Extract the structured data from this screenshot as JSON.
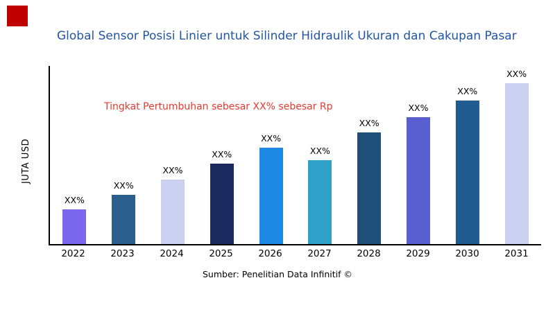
{
  "header": {
    "title": "Global Sensor Posisi Linier untuk Silinder Hidraulik Ukuran dan Cakupan Pasar",
    "title_color": "#2155A3",
    "logo_color": "#C00000"
  },
  "annotation": {
    "text": "Tingkat Pertumbuhan sebesar XX% sebesar Rp",
    "color": "#E8392E"
  },
  "source": "Sumber: Penelitian Data Infinitif ©",
  "chart_data": {
    "type": "bar",
    "title": "Global Sensor Posisi Linier untuk Silinder Hidraulik Ukuran dan Cakupan Pasar",
    "xlabel": "",
    "ylabel": "JUTA USD",
    "categories": [
      "2022",
      "2023",
      "2024",
      "2025",
      "2026",
      "2027",
      "2028",
      "2029",
      "2030",
      "2031"
    ],
    "values": [
      50,
      70,
      92,
      115,
      138,
      120,
      160,
      182,
      205,
      230
    ],
    "value_labels": [
      "XX%",
      "XX%",
      "XX%",
      "XX%",
      "XX%",
      "XX%",
      "XX%",
      "XX%",
      "XX%",
      "XX%"
    ],
    "bar_colors": [
      "#7B68EE",
      "#2B5F8E",
      "#CBD0F1",
      "#1B2A5E",
      "#1E88E5",
      "#2FA0C8",
      "#1F4E79",
      "#5A5FD0",
      "#215C90",
      "#CBD0F1"
    ],
    "ylim": [
      0,
      255
    ],
    "grid": false,
    "legend": false,
    "annotation": "Tingkat Pertumbuhan sebesar XX% sebesar Rp"
  }
}
